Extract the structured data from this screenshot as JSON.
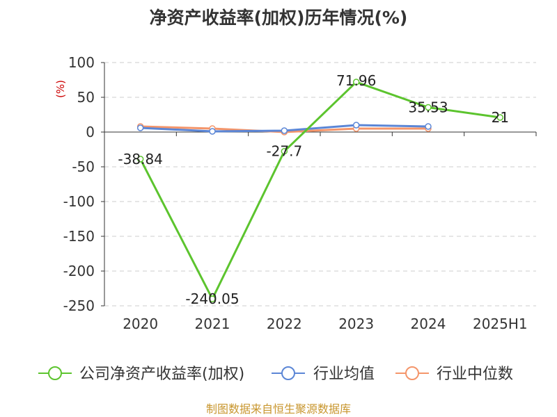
{
  "title": "净资产收益率(加权)历年情况(%)",
  "source_note": "制图数据来自恒生聚源数据库",
  "chart_data": {
    "type": "line",
    "categories": [
      "2020",
      "2021",
      "2022",
      "2023",
      "2024",
      "2025H1"
    ],
    "ylabel": "(%)",
    "ylim": [
      -250,
      100
    ],
    "yticks": [
      100,
      50,
      0,
      -50,
      -100,
      -150,
      -200,
      -250
    ],
    "grid": true,
    "legend_position": "bottom",
    "series": [
      {
        "name": "公司净资产收益率(加权)",
        "color": "#5cc42e",
        "values": [
          -38.84,
          -240.05,
          -27.7,
          71.96,
          35.53,
          21
        ],
        "labels": [
          "-38.84",
          "-240.05",
          "-27.7",
          "71.96",
          "35.53",
          "21"
        ]
      },
      {
        "name": "行业均值",
        "color": "#5b86d6",
        "values": [
          6,
          1,
          2,
          10,
          8,
          null
        ]
      },
      {
        "name": "行业中位数",
        "color": "#f4956a",
        "values": [
          8,
          5,
          0,
          5,
          5,
          null
        ]
      }
    ]
  }
}
